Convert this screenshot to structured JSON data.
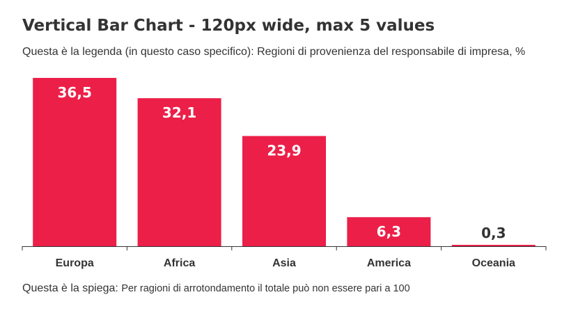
{
  "chart_data": {
    "type": "bar",
    "title": "Vertical Bar Chart - 120px wide, max 5 values",
    "subtitle": "Questa è la legenda (in questo caso specifico): Regioni di provenienza del responsabile di impresa, %",
    "categories": [
      "Europa",
      "Africa",
      "Asia",
      "America",
      "Oceania"
    ],
    "values": [
      36.5,
      32.1,
      23.9,
      6.3,
      0.3
    ],
    "value_labels": [
      "36,5",
      "32,1",
      "23,9",
      "6,3",
      "0,3"
    ],
    "xlabel": "",
    "ylabel": "",
    "ylim": [
      0,
      36.5
    ],
    "grid": false,
    "legend": "none",
    "bar_color": "#ec1f48",
    "label_color_inside": "#ffffff",
    "label_color_outside": "#333333"
  },
  "footnote": {
    "prefix": "Questa è la spiega: ",
    "text": "Per ragioni di arrotondamento il totale può non essere pari a 100"
  }
}
